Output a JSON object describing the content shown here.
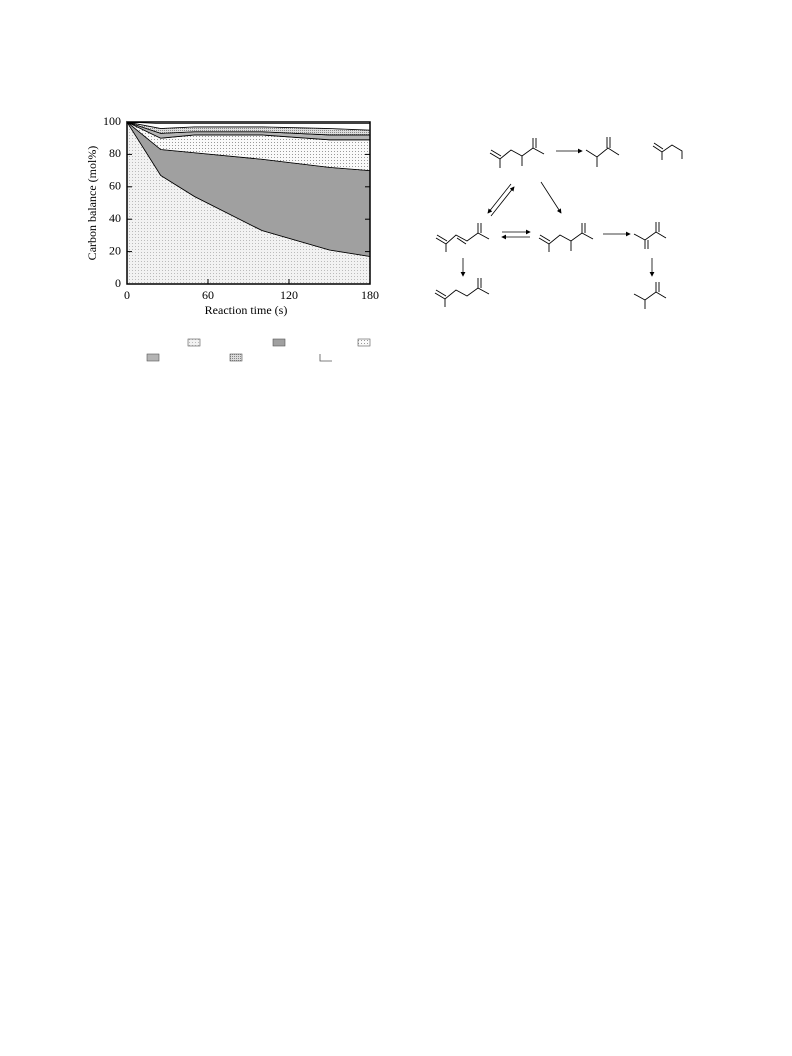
{
  "chart_data": {
    "type": "stacked-area",
    "x_label": "Reaction time (s)",
    "y_label": "Carbon balance (mol%)",
    "x": [
      0,
      25,
      50,
      100,
      150,
      180
    ],
    "series": [
      {
        "color": "#ececec",
        "values": [
          100,
          67,
          54,
          33,
          21,
          17
        ]
      },
      {
        "color": "#a0a0a0",
        "values": [
          0,
          16,
          27,
          44,
          51,
          53
        ]
      },
      {
        "color": "#f4f4f4",
        "values": [
          0,
          7,
          11,
          15,
          17,
          19
        ]
      },
      {
        "color": "#b4b4b4",
        "values": [
          0,
          3,
          2,
          2,
          3,
          3
        ]
      },
      {
        "color": "#d4d4d4",
        "values": [
          0,
          3,
          3,
          3,
          4,
          3
        ]
      },
      {
        "color": "#ffffff",
        "values": [
          0,
          3,
          2,
          2,
          3,
          4
        ]
      }
    ],
    "xlim": [
      0,
      180
    ],
    "xticks": [
      0,
      60,
      120,
      180
    ],
    "ylim": [
      0,
      100
    ],
    "yticks": [
      0,
      20,
      40,
      60,
      80,
      100
    ]
  }
}
